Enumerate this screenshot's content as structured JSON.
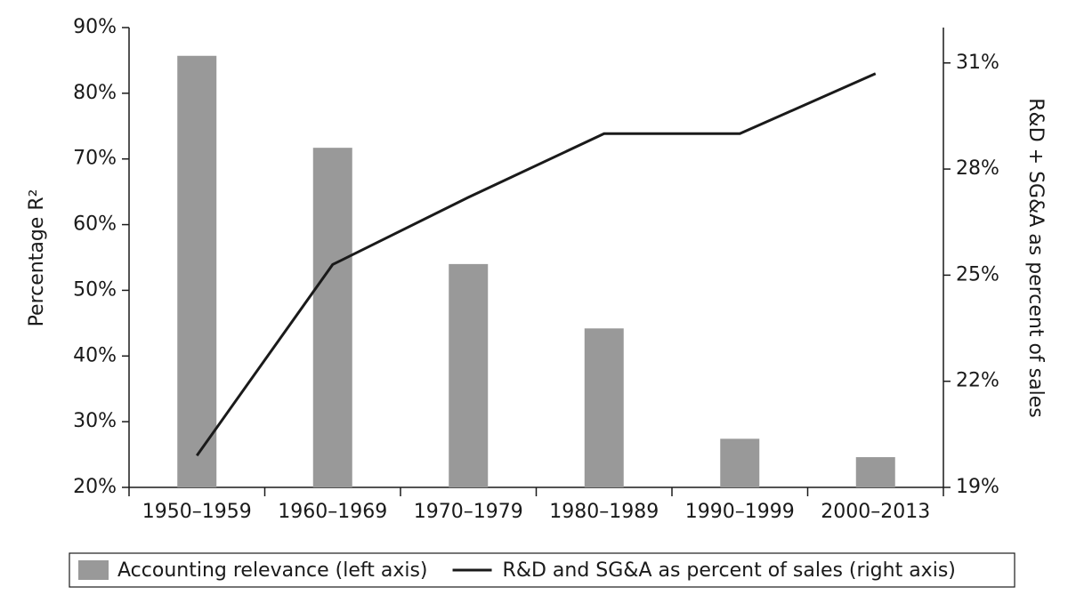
{
  "chart_data": {
    "type": "bar-line",
    "categories": [
      "1950–1959",
      "1960–1969",
      "1970–1979",
      "1980–1989",
      "1990–1999",
      "2000–2013"
    ],
    "series": [
      {
        "name": "Accounting relevance (left axis)",
        "type": "bar",
        "color": "#999999",
        "values": [
          85.7,
          71.7,
          54.0,
          44.2,
          27.4,
          24.6
        ]
      },
      {
        "name": "R&D and SG&A as percent of sales (right axis)",
        "type": "line",
        "axis": "y2",
        "color": "#1a1a1a",
        "values": [
          19.9,
          25.3,
          27.2,
          29.0,
          29.0,
          30.7
        ]
      }
    ],
    "ylabel": "Percentage R²",
    "y2label": "R&D + SG&A as percent of sales",
    "ylim": [
      20,
      90
    ],
    "yticks": [
      {
        "value": 20,
        "label": "20%"
      },
      {
        "value": 30,
        "label": "30%"
      },
      {
        "value": 40,
        "label": "40%"
      },
      {
        "value": 50,
        "label": "50%"
      },
      {
        "value": 60,
        "label": "60%"
      },
      {
        "value": 70,
        "label": "70%"
      },
      {
        "value": 80,
        "label": "80%"
      },
      {
        "value": 90,
        "label": "90%"
      }
    ],
    "y2lim": [
      19,
      32
    ],
    "y2ticks": [
      {
        "value": 19,
        "label": "19%"
      },
      {
        "value": 22,
        "label": "22%"
      },
      {
        "value": 25,
        "label": "25%"
      },
      {
        "value": 28,
        "label": "28%"
      },
      {
        "value": 31,
        "label": "31%"
      }
    ],
    "legend": "bottom"
  }
}
